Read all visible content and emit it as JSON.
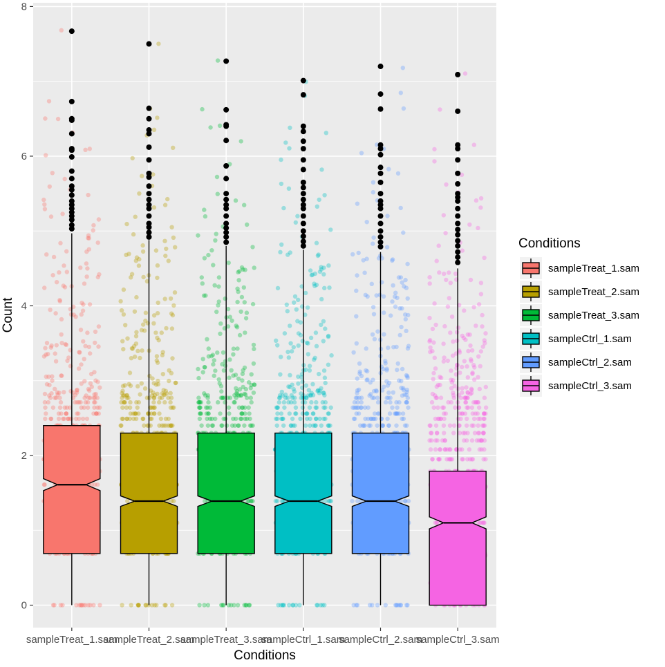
{
  "chart_data": {
    "type": "boxplot",
    "notched": true,
    "jitter_points_shown": true,
    "xlabel": "Conditions",
    "ylabel": "Count",
    "ylim": [
      -0.3,
      8.05
    ],
    "yticks": [
      0,
      2,
      4,
      6,
      8
    ],
    "categories": [
      "sampleTreat_1.sam",
      "sampleTreat_2.sam",
      "sampleTreat_3.sam",
      "sampleCtrl_1.sam",
      "sampleCtrl_2.sam",
      "sampleCtrl_3.sam"
    ],
    "series": [
      {
        "name": "sampleTreat_1.sam",
        "color": "#F8766D",
        "q1": 0.69,
        "median": 1.61,
        "q3": 2.4,
        "whisker_low": 0.0,
        "whisker_high": 4.97,
        "notch_low": 1.53,
        "notch_high": 1.69,
        "outliers": [
          7.67,
          6.73,
          6.5,
          6.48,
          6.3,
          6.1,
          6.08,
          5.99,
          5.8,
          5.7,
          5.6,
          5.55,
          5.48,
          5.4,
          5.35,
          5.3,
          5.25,
          5.2,
          5.15,
          5.08,
          5.03
        ]
      },
      {
        "name": "sampleTreat_2.sam",
        "color": "#B79F00",
        "q1": 0.69,
        "median": 1.39,
        "q3": 2.3,
        "whisker_low": 0.0,
        "whisker_high": 4.88,
        "notch_low": 1.32,
        "notch_high": 1.46,
        "outliers": [
          7.5,
          6.64,
          6.5,
          6.35,
          6.3,
          6.12,
          5.95,
          5.77,
          5.72,
          5.6,
          5.5,
          5.42,
          5.35,
          5.3,
          5.2,
          5.1,
          5.05,
          4.98,
          4.92
        ]
      },
      {
        "name": "sampleTreat_3.sam",
        "color": "#00BA38",
        "q1": 0.69,
        "median": 1.39,
        "q3": 2.3,
        "whisker_low": 0.0,
        "whisker_high": 4.8,
        "notch_low": 1.32,
        "notch_high": 1.46,
        "outliers": [
          7.27,
          6.62,
          6.42,
          6.4,
          6.21,
          5.87,
          5.7,
          5.5,
          5.42,
          5.35,
          5.3,
          5.2,
          5.1,
          5.04,
          4.98,
          4.92,
          4.85
        ]
      },
      {
        "name": "sampleCtrl_1.sam",
        "color": "#00BFC4",
        "q1": 0.69,
        "median": 1.39,
        "q3": 2.3,
        "whisker_low": 0.0,
        "whisker_high": 4.75,
        "notch_low": 1.32,
        "notch_high": 1.46,
        "outliers": [
          7.01,
          6.82,
          6.4,
          6.33,
          6.2,
          6.1,
          5.95,
          5.82,
          5.65,
          5.58,
          5.5,
          5.42,
          5.35,
          5.3,
          5.2,
          5.1,
          5.0,
          4.93,
          4.86,
          4.8
        ]
      },
      {
        "name": "sampleCtrl_2.sam",
        "color": "#619CFF",
        "q1": 0.69,
        "median": 1.39,
        "q3": 2.3,
        "whisker_low": 0.0,
        "whisker_high": 4.72,
        "notch_low": 1.32,
        "notch_high": 1.46,
        "outliers": [
          7.2,
          6.83,
          6.63,
          6.15,
          6.1,
          6.02,
          5.85,
          5.77,
          5.65,
          5.5,
          5.4,
          5.35,
          5.3,
          5.2,
          5.1,
          5.0,
          4.92,
          4.85,
          4.79
        ]
      },
      {
        "name": "sampleCtrl_3.sam",
        "color": "#F564E3",
        "q1": 0.0,
        "median": 1.1,
        "q3": 1.79,
        "whisker_low": 0.0,
        "whisker_high": 4.5,
        "notch_low": 1.02,
        "notch_high": 1.18,
        "outliers": [
          7.09,
          6.6,
          6.15,
          6.1,
          5.95,
          5.77,
          5.63,
          5.5,
          5.45,
          5.4,
          5.3,
          5.2,
          5.1,
          5.02,
          4.95,
          4.87,
          4.8,
          4.72,
          4.65,
          4.58
        ]
      }
    ],
    "legend": {
      "title": "Conditions",
      "position": "right"
    }
  }
}
